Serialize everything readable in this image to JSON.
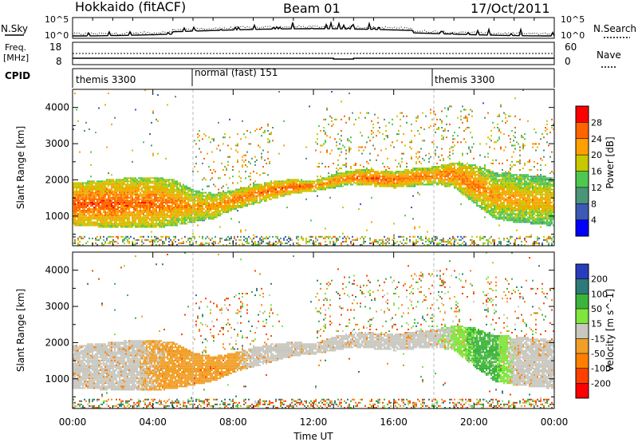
{
  "header": {
    "station": "Hokkaido (fitACF)",
    "beam": "Beam 01",
    "date": "17/Oct/2011"
  },
  "noise_panel": {
    "left_label": "N.Sky",
    "right_label": "N.Search",
    "left_ticks": [
      "10^5",
      "10^0"
    ],
    "right_ticks": [
      "10^5",
      "10^0"
    ]
  },
  "freq_panel": {
    "left_label_top": "Freq.",
    "left_label_bottom": "[MHz]",
    "right_label": "Nave",
    "left_ticks": [
      "18",
      "8"
    ],
    "right_ticks": [
      "60",
      "0"
    ]
  },
  "cpid": {
    "label": "CPID",
    "segments": [
      {
        "text": "themis 3300",
        "start_hour": 0
      },
      {
        "text": "normal (fast) 151",
        "start_hour": 6
      },
      {
        "text": "themis 3300",
        "start_hour": 18
      }
    ]
  },
  "x_axis": {
    "title": "Time UT",
    "ticks": [
      "00:00",
      "04:00",
      "08:00",
      "12:00",
      "16:00",
      "20:00",
      "00:00"
    ],
    "range_hours": [
      0,
      24
    ]
  },
  "colors": {
    "power_scale": [
      "#0000ff",
      "#3c5ab4",
      "#4b9678",
      "#50c850",
      "#c8c800",
      "#ffa000",
      "#ff6400",
      "#ff0000"
    ],
    "velocity_scale": [
      "#2a3cbe",
      "#2e7a78",
      "#3cb43c",
      "#7ee63c",
      "#c8c8c0",
      "#f0a028",
      "#ff8000",
      "#ff4000",
      "#ff0000"
    ]
  },
  "chart_data": [
    {
      "type": "heatmap",
      "panel": "power",
      "ylabel": "Slant Range [km]",
      "xlabel": "Time UT",
      "ylim": [
        180,
        4500
      ],
      "yticks": [
        1000,
        2000,
        3000,
        4000
      ],
      "xlim": [
        0,
        24
      ],
      "colorbar": {
        "label": "Power [dB]",
        "ticks": [
          "4",
          "8",
          "12",
          "16",
          "20",
          "24",
          "28"
        ],
        "range": [
          0,
          32
        ]
      },
      "main_band": {
        "hours": [
          0,
          1,
          2,
          3,
          4,
          5,
          6,
          7,
          8,
          9,
          10,
          11,
          12,
          13,
          14,
          15,
          16,
          17,
          18,
          19,
          20,
          21,
          22,
          23,
          24
        ],
        "low_km": [
          700,
          680,
          660,
          650,
          640,
          700,
          800,
          900,
          1150,
          1300,
          1450,
          1600,
          1650,
          1750,
          1850,
          1800,
          1750,
          1800,
          1850,
          1750,
          1300,
          900,
          800,
          750,
          700
        ],
        "high_km": [
          1900,
          1950,
          2000,
          2050,
          2050,
          2000,
          1700,
          1600,
          1700,
          1850,
          1950,
          2000,
          1950,
          2150,
          2250,
          2250,
          2200,
          2300,
          2350,
          2450,
          2400,
          2200,
          2150,
          2100,
          2050
        ],
        "peak_power_db": [
          30,
          30,
          30,
          29,
          29,
          28,
          26,
          27,
          28,
          28,
          29,
          30,
          28,
          27,
          29,
          30,
          29,
          28,
          28,
          29,
          28,
          26,
          26,
          25,
          25
        ]
      }
    },
    {
      "type": "heatmap",
      "panel": "velocity",
      "ylabel": "Slant Range [km]",
      "xlabel": "Time UT",
      "ylim": [
        180,
        4500
      ],
      "yticks": [
        1000,
        2000,
        3000,
        4000
      ],
      "xlim": [
        0,
        24
      ],
      "colorbar": {
        "label": "Velocity [m s^-1]",
        "ticks": [
          "200",
          "100",
          "50",
          "15",
          "-15",
          "-50",
          "-100",
          "-200"
        ],
        "range": [
          -250,
          250
        ]
      },
      "main_band": {
        "hours": [
          0,
          1,
          2,
          3,
          4,
          5,
          6,
          7,
          8,
          9,
          10,
          11,
          12,
          13,
          14,
          15,
          16,
          17,
          18,
          19,
          20,
          21,
          22,
          23,
          24
        ],
        "low_km": [
          700,
          680,
          660,
          650,
          640,
          700,
          800,
          900,
          1150,
          1300,
          1450,
          1600,
          1650,
          1750,
          1850,
          1800,
          1750,
          1800,
          1850,
          1750,
          1300,
          900,
          800,
          750,
          700
        ],
        "high_km": [
          1900,
          1950,
          2000,
          2050,
          2050,
          2000,
          1700,
          1600,
          1700,
          1850,
          1950,
          2000,
          1950,
          2150,
          2250,
          2250,
          2200,
          2300,
          2350,
          2450,
          2400,
          2200,
          2150,
          2100,
          2050
        ],
        "typical_velocity_ms": [
          0,
          0,
          0,
          0,
          -20,
          -30,
          -30,
          -40,
          -30,
          0,
          0,
          0,
          0,
          0,
          0,
          0,
          0,
          0,
          0,
          20,
          60,
          60,
          0,
          0,
          0
        ]
      }
    }
  ]
}
